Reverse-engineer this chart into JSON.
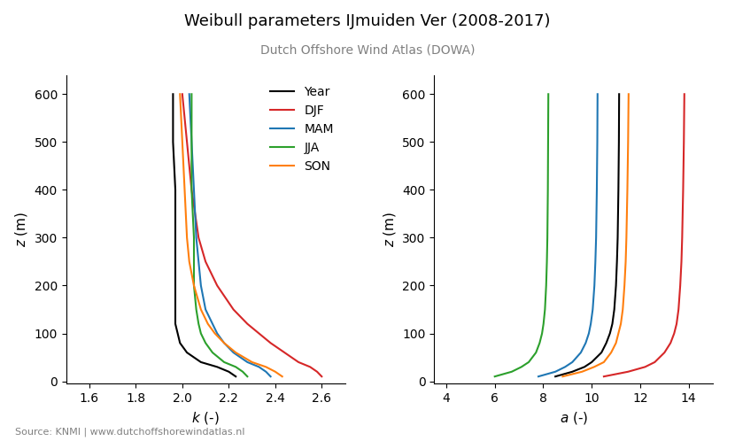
{
  "title": "Weibull parameters IJmuiden Ver (2008-2017)",
  "subtitle": "Dutch Offshore Wind Atlas (DOWA)",
  "source_text": "Source: KNMI | www.dutchoffshorewindatlas.nl",
  "legend_labels": [
    "Year",
    "DJF",
    "MAM",
    "JJA",
    "SON"
  ],
  "colors": [
    "black",
    "#d62728",
    "#1f77b4",
    "#2ca02c",
    "#ff7f0e"
  ],
  "z_levels": [
    10,
    20,
    30,
    40,
    60,
    80,
    100,
    120,
    150,
    200,
    250,
    300,
    400,
    500,
    600
  ],
  "k_year": [
    2.23,
    2.2,
    2.15,
    2.08,
    2.02,
    1.99,
    1.98,
    1.97,
    1.97,
    1.97,
    1.97,
    1.97,
    1.97,
    1.96,
    1.96
  ],
  "k_DJF": [
    2.6,
    2.58,
    2.55,
    2.5,
    2.44,
    2.38,
    2.33,
    2.28,
    2.22,
    2.15,
    2.1,
    2.07,
    2.04,
    2.02,
    2.0
  ],
  "k_MAM": [
    2.38,
    2.36,
    2.33,
    2.28,
    2.22,
    2.18,
    2.15,
    2.13,
    2.1,
    2.08,
    2.07,
    2.06,
    2.05,
    2.04,
    2.03
  ],
  "k_JJA": [
    2.28,
    2.26,
    2.23,
    2.18,
    2.13,
    2.1,
    2.08,
    2.07,
    2.06,
    2.05,
    2.05,
    2.05,
    2.04,
    2.04,
    2.04
  ],
  "k_SON": [
    2.43,
    2.4,
    2.36,
    2.3,
    2.23,
    2.18,
    2.14,
    2.11,
    2.08,
    2.05,
    2.03,
    2.02,
    2.01,
    2.0,
    1.99
  ],
  "a_year": [
    8.5,
    9.2,
    9.7,
    10.0,
    10.4,
    10.6,
    10.75,
    10.85,
    10.93,
    11.0,
    11.04,
    11.07,
    11.1,
    11.12,
    11.13
  ],
  "a_DJF": [
    10.5,
    11.5,
    12.2,
    12.6,
    13.0,
    13.25,
    13.4,
    13.5,
    13.58,
    13.65,
    13.7,
    13.73,
    13.77,
    13.8,
    13.82
  ],
  "a_MAM": [
    7.8,
    8.5,
    8.9,
    9.2,
    9.55,
    9.75,
    9.88,
    9.96,
    10.04,
    10.11,
    10.15,
    10.18,
    10.21,
    10.23,
    10.24
  ],
  "a_JJA": [
    6.0,
    6.7,
    7.1,
    7.4,
    7.7,
    7.85,
    7.95,
    8.01,
    8.07,
    8.12,
    8.15,
    8.17,
    8.19,
    8.2,
    8.21
  ],
  "a_SON": [
    8.8,
    9.6,
    10.1,
    10.5,
    10.8,
    11.0,
    11.1,
    11.2,
    11.28,
    11.35,
    11.4,
    11.43,
    11.47,
    11.5,
    11.52
  ],
  "k_xlim": [
    1.5,
    2.7
  ],
  "k_xticks": [
    1.6,
    1.8,
    2.0,
    2.2,
    2.4,
    2.6
  ],
  "a_xlim": [
    3.5,
    15.0
  ],
  "a_xticks": [
    4,
    6,
    8,
    10,
    12,
    14
  ],
  "ylim": [
    -5,
    640
  ],
  "yticks": [
    0,
    100,
    200,
    300,
    400,
    500,
    600
  ]
}
